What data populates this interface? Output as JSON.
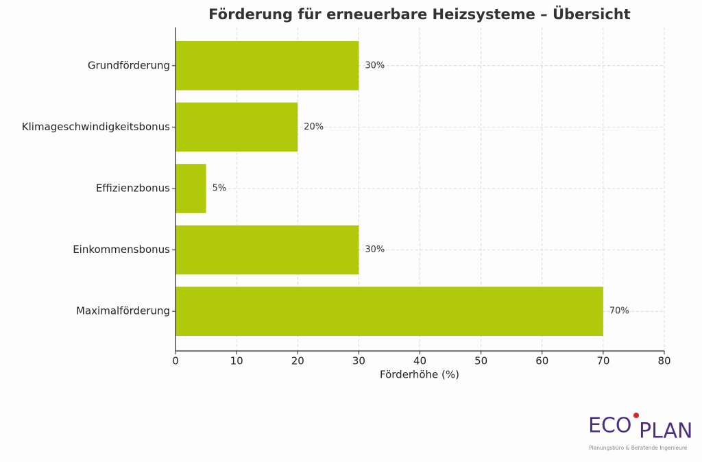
{
  "chart_data": {
    "type": "bar",
    "orientation": "horizontal",
    "title": "Förderung für erneuerbare Heizsysteme – Übersicht",
    "categories": [
      "Grundförderung",
      "Klimageschwindigkeitsbonus",
      "Effizienzbonus",
      "Einkommensbonus",
      "Maximalförderung"
    ],
    "values": [
      30,
      20,
      5,
      30,
      70
    ],
    "value_labels": [
      "30%",
      "20%",
      "5%",
      "30%",
      "70%"
    ],
    "color": "#b0c90a",
    "xlabel": "Förderhöhe (%)",
    "xlim": [
      0,
      80
    ],
    "xticks": [
      0,
      10,
      20,
      30,
      40,
      50,
      60,
      70,
      80
    ],
    "grid": true
  },
  "logo": {
    "left": "ECO",
    "right": "PLAN",
    "tagline": "Planungsbüro & Beratende Ingenieure"
  }
}
